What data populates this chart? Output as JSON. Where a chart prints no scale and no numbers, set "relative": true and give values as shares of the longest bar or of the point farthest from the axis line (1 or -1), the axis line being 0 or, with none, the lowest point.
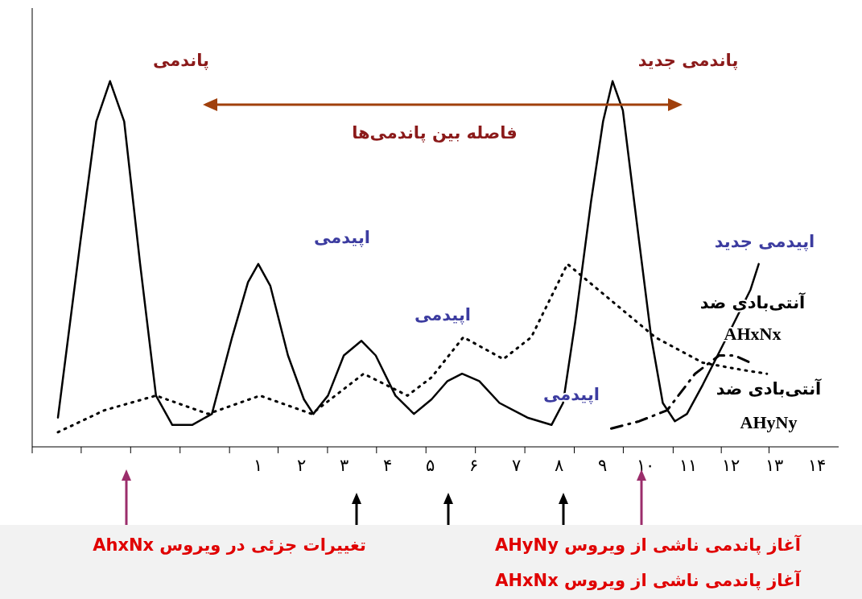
{
  "chart_data": {
    "type": "line",
    "relative": true,
    "xlim": [
      -4.26,
      14.5
    ],
    "xticks": [
      {
        "value": -4.26,
        "label": null
      },
      {
        "value": -3.12,
        "label": null
      },
      {
        "value": -1.97,
        "label": null
      },
      {
        "value": -0.82,
        "label": null
      },
      {
        "value": 0.33,
        "label": null
      },
      {
        "value": 1.46,
        "label": null
      },
      {
        "value": 2.61,
        "label": null
      },
      {
        "value": 3.75,
        "label": null
      },
      {
        "value": 4.9,
        "label": null
      },
      {
        "value": 6.05,
        "label": null
      },
      {
        "value": 7.2,
        "label": null
      },
      {
        "value": 8.35,
        "label": null
      },
      {
        "value": 9.49,
        "label": null
      },
      {
        "value": 10.65,
        "label": null
      },
      {
        "value": 11.77,
        "label": null
      },
      {
        "value": 12.88,
        "label": null
      },
      {
        "value": 1,
        "label": "۱"
      },
      {
        "value": 2,
        "label": "۲"
      },
      {
        "value": 3,
        "label": "۳"
      },
      {
        "value": 4,
        "label": "۴"
      },
      {
        "value": 5,
        "label": "۵"
      },
      {
        "value": 6,
        "label": "۶"
      },
      {
        "value": 7,
        "label": "۷"
      },
      {
        "value": 8,
        "label": "۸"
      },
      {
        "value": 9,
        "label": "۹"
      },
      {
        "value": 10,
        "label": "۱۰"
      },
      {
        "value": 11,
        "label": "۱۱"
      },
      {
        "value": 12,
        "label": "۱۲"
      },
      {
        "value": 13,
        "label": "۱۳"
      },
      {
        "value": 14,
        "label": "۱۴"
      }
    ],
    "tick_labels": "x",
    "annotations": [
      "پاندمی",
      "پاندمی جدید",
      "فاصله بین پاندمی‌ها",
      "اپیدمی",
      "اپیدمی",
      "اپیدمی",
      "اپیدمی جدید",
      "تغییرات جزئی در ویروس AhxNx",
      "آغاز پاندمی ناشی از ویروس AHyNy",
      "آغاز پاندمی ناشی از ویروس AHxNx"
    ],
    "series": [
      {
        "color": "#000000",
        "line_style": "solid",
        "x": [
          -3.66,
          -3.14,
          -2.77,
          -2.45,
          -2.12,
          -1.75,
          -1.38,
          -1.0,
          -0.54,
          -0.08,
          0.39,
          0.76,
          1.0,
          1.28,
          1.69,
          2.06,
          2.28,
          2.62,
          2.99,
          3.4,
          3.73,
          4.19,
          4.62,
          5.03,
          5.4,
          5.74,
          6.14,
          6.61,
          7.26,
          7.82,
          8.09,
          8.37,
          8.74,
          9.02,
          9.24,
          9.48,
          9.86,
          10.14,
          10.41,
          10.69,
          10.97,
          11.34,
          11.9,
          12.45,
          12.64
        ],
        "values": [
          0.08,
          0.56,
          0.89,
          1,
          0.89,
          0.5,
          0.14,
          0.06,
          0.06,
          0.09,
          0.3,
          0.45,
          0.5,
          0.44,
          0.25,
          0.13,
          0.09,
          0.14,
          0.25,
          0.29,
          0.25,
          0.14,
          0.09,
          0.13,
          0.18,
          0.2,
          0.18,
          0.12,
          0.08,
          0.06,
          0.12,
          0.34,
          0.67,
          0.89,
          1,
          0.92,
          0.56,
          0.3,
          0.12,
          0.07,
          0.09,
          0.17,
          0.3,
          0.43,
          0.5
        ]
      },
      {
        "name": "آنتی‌بادی ضد AHxNx",
        "color": "#000000",
        "line_style": "dotted",
        "x": [
          -3.66,
          -2.58,
          -1.38,
          -0.17,
          1.04,
          2.24,
          3.45,
          4.47,
          5.03,
          5.77,
          6.7,
          7.35,
          8.19,
          9.11,
          10.23,
          11.34,
          12.27,
          12.83
        ],
        "values": [
          0.04,
          0.1,
          0.14,
          0.09,
          0.14,
          0.09,
          0.2,
          0.14,
          0.19,
          0.3,
          0.24,
          0.3,
          0.5,
          0.41,
          0.3,
          0.23,
          0.21,
          0.2
        ]
      },
      {
        "name": "آنتی‌بادی ضد AHyNy",
        "color": "#000000",
        "line_style": "dashed",
        "x": [
          9.21,
          9.86,
          10.51,
          11.16,
          11.72,
          12.08,
          12.45
        ],
        "values": [
          0.05,
          0.07,
          0.1,
          0.2,
          0.25,
          0.25,
          0.23
        ]
      }
    ]
  }
}
